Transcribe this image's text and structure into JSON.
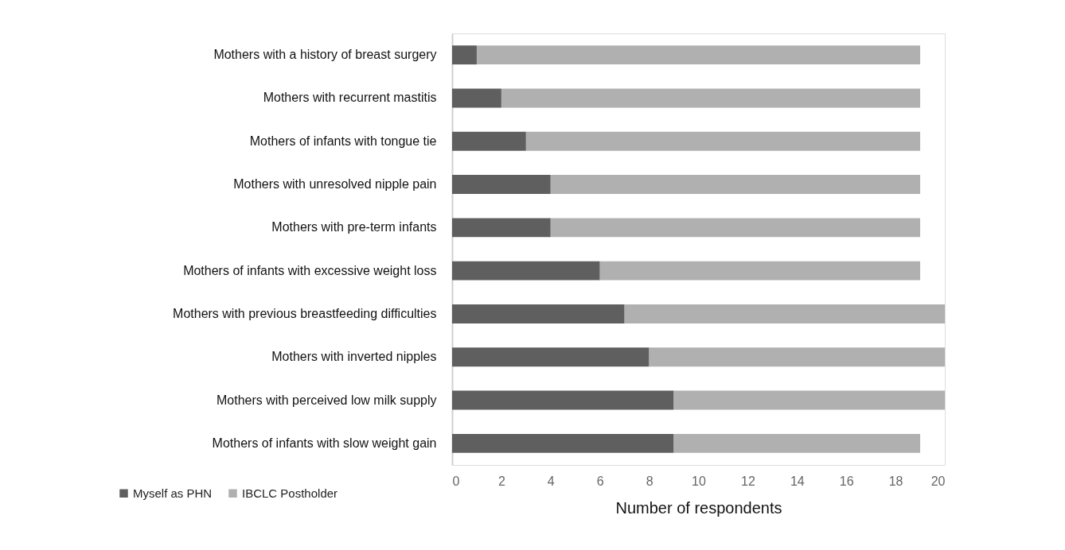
{
  "chart_data": {
    "type": "bar",
    "orientation": "horizontal",
    "stacked": true,
    "xlabel": "Number of respondents",
    "categories": [
      "Mothers with a history of breast surgery",
      "Mothers with recurrent mastitis",
      "Mothers of infants with tongue tie",
      "Mothers with unresolved nipple pain",
      "Mothers with pre-term infants",
      "Mothers of infants with excessive weight loss",
      "Mothers with previous breastfeeding difficulties",
      "Mothers with inverted nipples",
      "Mothers with perceived low milk supply",
      "Mothers of infants with slow weight gain"
    ],
    "series": [
      {
        "name": "Myself as PHN",
        "color": "#5f5f5f",
        "values": [
          1,
          2,
          3,
          4,
          4,
          6,
          7,
          8,
          9,
          9
        ]
      },
      {
        "name": "IBCLC Postholder",
        "color": "#b0b0b0",
        "values": [
          18,
          17,
          16,
          15,
          15,
          13,
          13,
          12,
          11,
          10
        ]
      }
    ],
    "xlim": [
      0,
      20
    ],
    "xticks": [
      0,
      2,
      4,
      6,
      8,
      10,
      12,
      14,
      16,
      18,
      20
    ],
    "grid": false,
    "legend": "bottom left"
  }
}
